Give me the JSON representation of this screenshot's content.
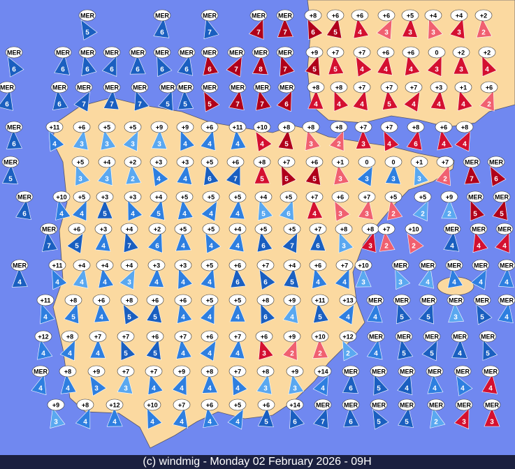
{
  "footer": "(c) windmig - Monday 02 February 2026 - 09H",
  "stations": [
    {
      "label": "MER",
      "speed": 5,
      "color": "#1a5fc0"
    },
    {
      "label": "MER",
      "speed": 6,
      "color": "#1a5fc0"
    },
    {
      "label": "MER",
      "speed": 7,
      "color": "#1a5fc0"
    },
    {
      "label": "MER",
      "speed": 7,
      "color": "#b0001a"
    },
    {
      "label": "MER",
      "speed": 7,
      "color": "#b0001a"
    },
    {
      "label": "+8",
      "speed": 6,
      "color": "#b0001a"
    },
    {
      "label": "+6",
      "speed": 5,
      "color": "#b0001a"
    },
    {
      "label": "+6",
      "speed": 4,
      "color": "#d41030"
    },
    {
      "label": "+6",
      "speed": 3,
      "color": "#f06070"
    },
    {
      "label": "+5",
      "speed": 3,
      "color": "#d41030"
    },
    {
      "label": "+4",
      "speed": 3,
      "color": "#f06070"
    },
    {
      "label": "+4",
      "speed": 3,
      "color": "#d41030"
    },
    {
      "label": "+2",
      "speed": 2,
      "color": "#f06070"
    },
    {
      "label": "MER",
      "speed": 6,
      "color": "#1a5fc0"
    },
    {
      "label": "MER",
      "speed": 6,
      "color": "#1a5fc0"
    },
    {
      "label": "MER",
      "speed": 6,
      "color": "#1a5fc0"
    },
    {
      "label": "MER",
      "speed": 6,
      "color": "#1a5fc0"
    },
    {
      "label": "MER",
      "speed": 6,
      "color": "#1a5fc0"
    },
    {
      "label": "MER",
      "speed": 6,
      "color": "#1a5fc0"
    },
    {
      "label": "MER",
      "speed": 6,
      "color": "#1a5fc0"
    },
    {
      "label": "MER",
      "speed": 6,
      "color": "#b0001a"
    },
    {
      "label": "MER",
      "speed": 7,
      "color": "#b0001a"
    },
    {
      "label": "MER",
      "speed": 8,
      "color": "#b0001a"
    },
    {
      "label": "MER",
      "speed": 7,
      "color": "#b0001a"
    },
    {
      "label": "+9",
      "speed": 5,
      "color": "#b0001a"
    },
    {
      "label": "+7",
      "speed": 5,
      "color": "#d41030"
    },
    {
      "label": "+7",
      "speed": 4,
      "color": "#d41030"
    },
    {
      "label": "+6",
      "speed": 4,
      "color": "#d41030"
    },
    {
      "label": "+6",
      "speed": 4,
      "color": "#d41030"
    },
    {
      "label": "0",
      "speed": 3,
      "color": "#d41030"
    },
    {
      "label": "+2",
      "speed": 3,
      "color": "#d41030"
    },
    {
      "label": "+2",
      "speed": 4,
      "color": "#d41030"
    },
    {
      "label": "MER",
      "speed": 6,
      "color": "#1a5fc0"
    },
    {
      "label": "MER",
      "speed": 6,
      "color": "#1a5fc0"
    },
    {
      "label": "MER",
      "speed": 7,
      "color": "#1a5fc0"
    },
    {
      "label": "MER",
      "speed": 7,
      "color": "#1a5fc0"
    },
    {
      "label": "MER",
      "speed": 7,
      "color": "#1a5fc0"
    },
    {
      "label": "MER",
      "speed": 5,
      "color": "#1a5fc0"
    },
    {
      "label": "MER",
      "speed": 5,
      "color": "#1a5fc0"
    },
    {
      "label": "MER",
      "speed": 5,
      "color": "#b0001a"
    },
    {
      "label": "MER",
      "speed": 7,
      "color": "#b0001a"
    },
    {
      "label": "MER",
      "speed": 7,
      "color": "#b0001a"
    },
    {
      "label": "MER",
      "speed": 6,
      "color": "#b0001a"
    },
    {
      "label": "+8",
      "speed": 4,
      "color": "#d41030"
    },
    {
      "label": "+8",
      "speed": 4,
      "color": "#d41030"
    },
    {
      "label": "+7",
      "speed": 4,
      "color": "#d41030"
    },
    {
      "label": "+7",
      "speed": 5,
      "color": "#d41030"
    },
    {
      "label": "+7",
      "speed": 4,
      "color": "#d41030"
    },
    {
      "label": "+3",
      "speed": 4,
      "color": "#d41030"
    },
    {
      "label": "+1",
      "speed": 4,
      "color": "#d41030"
    },
    {
      "label": "+6",
      "speed": 2,
      "color": "#f06070"
    },
    {
      "label": "MER",
      "speed": 6,
      "color": "#1a5fc0"
    },
    {
      "label": "+11",
      "speed": 4,
      "color": "#2e7fe0"
    },
    {
      "label": "+6",
      "speed": 3,
      "color": "#5aa8f0"
    },
    {
      "label": "+5",
      "speed": 3,
      "color": "#5aa8f0"
    },
    {
      "label": "+5",
      "speed": 3,
      "color": "#5aa8f0"
    },
    {
      "label": "+9",
      "speed": 3,
      "color": "#5aa8f0"
    },
    {
      "label": "+9",
      "speed": 4,
      "color": "#2e7fe0"
    },
    {
      "label": "+6",
      "speed": 4,
      "color": "#2e7fe0"
    },
    {
      "label": "+11",
      "speed": 4,
      "color": "#2e7fe0"
    },
    {
      "label": "+10",
      "speed": 4,
      "color": "#d41030"
    },
    {
      "label": "+8",
      "speed": 5,
      "color": "#b0001a"
    },
    {
      "label": "+8",
      "speed": 3,
      "color": "#f06070"
    },
    {
      "label": "+8",
      "speed": 2,
      "color": "#f06070"
    },
    {
      "label": "+7",
      "speed": 3,
      "color": "#d41030"
    },
    {
      "label": "+7",
      "speed": 4,
      "color": "#d41030"
    },
    {
      "label": "+8",
      "speed": 6,
      "color": "#d41030"
    },
    {
      "label": "+6",
      "speed": 4,
      "color": "#d41030"
    },
    {
      "label": "+8",
      "speed": 4,
      "color": "#d41030"
    },
    {
      "label": "MER",
      "speed": 5,
      "color": "#1a5fc0"
    },
    {
      "label": "+5",
      "speed": 3,
      "color": "#5aa8f0"
    },
    {
      "label": "+4",
      "speed": 3,
      "color": "#5aa8f0"
    },
    {
      "label": "+2",
      "speed": 2,
      "color": "#5aa8f0"
    },
    {
      "label": "+3",
      "speed": 4,
      "color": "#2e7fe0"
    },
    {
      "label": "+3",
      "speed": 4,
      "color": "#2e7fe0"
    },
    {
      "label": "+5",
      "speed": 6,
      "color": "#1a5fc0"
    },
    {
      "label": "+6",
      "speed": 7,
      "color": "#1a5fc0"
    },
    {
      "label": "+8",
      "speed": 5,
      "color": "#d41030"
    },
    {
      "label": "+7",
      "speed": 5,
      "color": "#b0001a"
    },
    {
      "label": "+6",
      "speed": 5,
      "color": "#b0001a"
    },
    {
      "label": "+1",
      "speed": 3,
      "color": "#f06070"
    },
    {
      "label": "0",
      "speed": 3,
      "color": "#2e7fe0"
    },
    {
      "label": "0",
      "speed": 3,
      "color": "#2e7fe0"
    },
    {
      "label": "+1",
      "speed": 3,
      "color": "#5aa8f0"
    },
    {
      "label": "+7",
      "speed": 2,
      "color": "#f06070"
    },
    {
      "label": "MER",
      "speed": 7,
      "color": "#b0001a"
    },
    {
      "label": "MER",
      "speed": 6,
      "color": "#b0001a"
    },
    {
      "label": "MER",
      "speed": 6,
      "color": "#1a5fc0"
    },
    {
      "label": "+10",
      "speed": 4,
      "color": "#2e7fe0"
    },
    {
      "label": "+5",
      "speed": 4,
      "color": "#2e7fe0"
    },
    {
      "label": "+3",
      "speed": 5,
      "color": "#1a5fc0"
    },
    {
      "label": "+3",
      "speed": 4,
      "color": "#2e7fe0"
    },
    {
      "label": "+4",
      "speed": 5,
      "color": "#2e7fe0"
    },
    {
      "label": "+5",
      "speed": 4,
      "color": "#2e7fe0"
    },
    {
      "label": "+5",
      "speed": 4,
      "color": "#2e7fe0"
    },
    {
      "label": "+5",
      "speed": 4,
      "color": "#2e7fe0"
    },
    {
      "label": "+4",
      "speed": 5,
      "color": "#5aa8f0"
    },
    {
      "label": "+5",
      "speed": 6,
      "color": "#5aa8f0"
    },
    {
      "label": "+7",
      "speed": 4,
      "color": "#d41030"
    },
    {
      "label": "+6",
      "speed": 3,
      "color": "#f06070"
    },
    {
      "label": "+7",
      "speed": 3,
      "color": "#f06070"
    },
    {
      "label": "+5",
      "speed": 2,
      "color": "#f06070"
    },
    {
      "label": "+5",
      "speed": 2,
      "color": "#5aa8f0"
    },
    {
      "label": "+9",
      "speed": 2,
      "color": "#5aa8f0"
    },
    {
      "label": "MER",
      "speed": 5,
      "color": "#b0001a"
    },
    {
      "label": "MER",
      "speed": 5,
      "color": "#b0001a"
    },
    {
      "label": "MER",
      "speed": 7,
      "color": "#1a5fc0"
    },
    {
      "label": "+6",
      "speed": 5,
      "color": "#1a5fc0"
    },
    {
      "label": "+3",
      "speed": 4,
      "color": "#2e7fe0"
    },
    {
      "label": "+4",
      "speed": 7,
      "color": "#1a5fc0"
    },
    {
      "label": "+2",
      "speed": 6,
      "color": "#2e7fe0"
    },
    {
      "label": "+5",
      "speed": 4,
      "color": "#2e7fe0"
    },
    {
      "label": "+5",
      "speed": 4,
      "color": "#2e7fe0"
    },
    {
      "label": "+4",
      "speed": 4,
      "color": "#2e7fe0"
    },
    {
      "label": "+5",
      "speed": 6,
      "color": "#1a5fc0"
    },
    {
      "label": "+5",
      "speed": 7,
      "color": "#1a5fc0"
    },
    {
      "label": "+7",
      "speed": 6,
      "color": "#1a5fc0"
    },
    {
      "label": "+8",
      "speed": 3,
      "color": "#5aa8f0"
    },
    {
      "label": "+8",
      "speed": 3,
      "color": "#d41030"
    },
    {
      "label": "+7",
      "speed": 2,
      "color": "#f06070"
    },
    {
      "label": "+10",
      "speed": 2,
      "color": "#f06070"
    },
    {
      "label": "MER",
      "speed": 4,
      "color": "#1a5fc0"
    },
    {
      "label": "MER",
      "speed": 4,
      "color": "#d41030"
    },
    {
      "label": "MER",
      "speed": 4,
      "color": "#d41030"
    },
    {
      "label": "MER",
      "speed": 4,
      "color": "#1a5fc0"
    },
    {
      "label": "+11",
      "speed": 4,
      "color": "#2e7fe0"
    },
    {
      "label": "+4",
      "speed": 4,
      "color": "#5aa8f0"
    },
    {
      "label": "+4",
      "speed": 4,
      "color": "#2e7fe0"
    },
    {
      "label": "+4",
      "speed": 3,
      "color": "#5aa8f0"
    },
    {
      "label": "+3",
      "speed": 4,
      "color": "#2e7fe0"
    },
    {
      "label": "+3",
      "speed": 4,
      "color": "#2e7fe0"
    },
    {
      "label": "+5",
      "speed": 4,
      "color": "#2e7fe0"
    },
    {
      "label": "+6",
      "speed": 6,
      "color": "#1a5fc0"
    },
    {
      "label": "+7",
      "speed": 6,
      "color": "#1a5fc0"
    },
    {
      "label": "+4",
      "speed": 5,
      "color": "#1a5fc0"
    },
    {
      "label": "+6",
      "speed": 4,
      "color": "#2e7fe0"
    },
    {
      "label": "+7",
      "speed": 4,
      "color": "#2e7fe0"
    },
    {
      "label": "+10",
      "speed": 3,
      "color": "#5aa8f0"
    },
    {
      "label": "MER",
      "speed": 3,
      "color": "#5aa8f0"
    },
    {
      "label": "MER",
      "speed": 4,
      "color": "#5aa8f0"
    },
    {
      "label": "MER",
      "speed": 4,
      "color": "#2e7fe0"
    },
    {
      "label": "MER",
      "speed": 4,
      "color": "#2e7fe0"
    },
    {
      "label": "MER",
      "speed": 4,
      "color": "#2e7fe0"
    },
    {
      "label": "+11",
      "speed": 4,
      "color": "#2e7fe0"
    },
    {
      "label": "+8",
      "speed": 5,
      "color": "#2e7fe0"
    },
    {
      "label": "+6",
      "speed": 4,
      "color": "#2e7fe0"
    },
    {
      "label": "+8",
      "speed": 5,
      "color": "#1a5fc0"
    },
    {
      "label": "+6",
      "speed": 5,
      "color": "#1a5fc0"
    },
    {
      "label": "+6",
      "speed": 4,
      "color": "#2e7fe0"
    },
    {
      "label": "+5",
      "speed": 4,
      "color": "#2e7fe0"
    },
    {
      "label": "+5",
      "speed": 4,
      "color": "#2e7fe0"
    },
    {
      "label": "+8",
      "speed": 6,
      "color": "#1a5fc0"
    },
    {
      "label": "+9",
      "speed": 4,
      "color": "#5aa8f0"
    },
    {
      "label": "+11",
      "speed": 5,
      "color": "#1a5fc0"
    },
    {
      "label": "+13",
      "speed": 4,
      "color": "#2e7fe0"
    },
    {
      "label": "MER",
      "speed": 4,
      "color": "#2e7fe0"
    },
    {
      "label": "MER",
      "speed": 5,
      "color": "#1a5fc0"
    },
    {
      "label": "MER",
      "speed": 5,
      "color": "#1a5fc0"
    },
    {
      "label": "MER",
      "speed": 3,
      "color": "#5aa8f0"
    },
    {
      "label": "MER",
      "speed": 5,
      "color": "#1a5fc0"
    },
    {
      "label": "MER",
      "speed": 4,
      "color": "#2e7fe0"
    },
    {
      "label": "+12",
      "speed": 4,
      "color": "#2e7fe0"
    },
    {
      "label": "+8",
      "speed": 4,
      "color": "#2e7fe0"
    },
    {
      "label": "+7",
      "speed": 4,
      "color": "#2e7fe0"
    },
    {
      "label": "+7",
      "speed": 5,
      "color": "#1a5fc0"
    },
    {
      "label": "+6",
      "speed": 5,
      "color": "#1a5fc0"
    },
    {
      "label": "+7",
      "speed": 4,
      "color": "#2e7fe0"
    },
    {
      "label": "+6",
      "speed": 4,
      "color": "#2e7fe0"
    },
    {
      "label": "+7",
      "speed": 4,
      "color": "#2e7fe0"
    },
    {
      "label": "+6",
      "speed": 3,
      "color": "#d41030"
    },
    {
      "label": "+9",
      "speed": 2,
      "color": "#f06070"
    },
    {
      "label": "+10",
      "speed": 2,
      "color": "#f06070"
    },
    {
      "label": "+12",
      "speed": 2,
      "color": "#5aa8f0"
    },
    {
      "label": "MER",
      "speed": 4,
      "color": "#2e7fe0"
    },
    {
      "label": "MER",
      "speed": 5,
      "color": "#1a5fc0"
    },
    {
      "label": "MER",
      "speed": 5,
      "color": "#1a5fc0"
    },
    {
      "label": "MER",
      "speed": 4,
      "color": "#1a5fc0"
    },
    {
      "label": "MER",
      "speed": 5,
      "color": "#1a5fc0"
    },
    {
      "label": "MER",
      "speed": 4,
      "color": "#2e7fe0"
    },
    {
      "label": "+8",
      "speed": 4,
      "color": "#2e7fe0"
    },
    {
      "label": "+9",
      "speed": 3,
      "color": "#2e7fe0"
    },
    {
      "label": "+7",
      "speed": 3,
      "color": "#5aa8f0"
    },
    {
      "label": "+7",
      "speed": 4,
      "color": "#2e7fe0"
    },
    {
      "label": "+9",
      "speed": 4,
      "color": "#2e7fe0"
    },
    {
      "label": "+8",
      "speed": 4,
      "color": "#2e7fe0"
    },
    {
      "label": "+7",
      "speed": 4,
      "color": "#2e7fe0"
    },
    {
      "label": "+8",
      "speed": 3,
      "color": "#5aa8f0"
    },
    {
      "label": "+9",
      "speed": 3,
      "color": "#5aa8f0"
    },
    {
      "label": "+14",
      "speed": 4,
      "color": "#2e7fe0"
    },
    {
      "label": "MER",
      "speed": 6,
      "color": "#1a5fc0"
    },
    {
      "label": "MER",
      "speed": 5,
      "color": "#1a5fc0"
    },
    {
      "label": "MER",
      "speed": 4,
      "color": "#1a5fc0"
    },
    {
      "label": "MER",
      "speed": 4,
      "color": "#2e7fe0"
    },
    {
      "label": "MER",
      "speed": 4,
      "color": "#2e7fe0"
    },
    {
      "label": "MER",
      "speed": 4,
      "color": "#d41030"
    },
    {
      "label": "+9",
      "speed": 3,
      "color": "#5aa8f0"
    },
    {
      "label": "+8",
      "speed": 4,
      "color": "#2e7fe0"
    },
    {
      "label": "+12",
      "speed": 4,
      "color": "#2e7fe0"
    },
    {
      "label": "+10",
      "speed": 4,
      "color": "#2e7fe0"
    },
    {
      "label": "+7",
      "speed": 4,
      "color": "#2e7fe0"
    },
    {
      "label": "+6",
      "speed": 4,
      "color": "#2e7fe0"
    },
    {
      "label": "+5",
      "speed": 4,
      "color": "#2e7fe0"
    },
    {
      "label": "+6",
      "speed": 5,
      "color": "#1a5fc0"
    },
    {
      "label": "+14",
      "speed": 6,
      "color": "#1a5fc0"
    },
    {
      "label": "MER",
      "speed": 7,
      "color": "#1a5fc0"
    },
    {
      "label": "MER",
      "speed": 6,
      "color": "#1a5fc0"
    },
    {
      "label": "MER",
      "speed": 5,
      "color": "#1a5fc0"
    },
    {
      "label": "MER",
      "speed": 5,
      "color": "#1a5fc0"
    },
    {
      "label": "MER",
      "speed": 2,
      "color": "#5aa8f0"
    },
    {
      "label": "MER",
      "speed": 3,
      "color": "#d41030"
    },
    {
      "label": "MER",
      "speed": 3,
      "color": "#d41030"
    }
  ]
}
